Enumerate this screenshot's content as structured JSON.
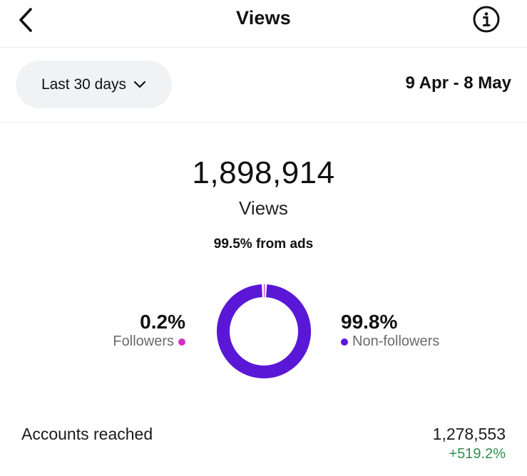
{
  "header": {
    "title": "Views",
    "back_icon": "chevron-left-icon",
    "info_icon": "info-icon"
  },
  "range": {
    "selected": "Last 30 days",
    "dropdown_icon": "chevron-down-icon",
    "dates": "9 Apr - 8 May"
  },
  "summary": {
    "total": "1,898,914",
    "label": "Views",
    "ads_note": "99.5% from ads"
  },
  "audience": {
    "followers": {
      "percent": "0.2%",
      "label": "Followers",
      "color": "#d62fc7",
      "fraction": 0.002
    },
    "non_followers": {
      "percent": "99.8%",
      "label": "Non-followers",
      "color": "#5b17d6",
      "fraction": 0.998
    }
  },
  "reach": {
    "label": "Accounts reached",
    "value": "1,278,553",
    "change": "+519.2%",
    "change_color": "#2f8f4e"
  }
}
